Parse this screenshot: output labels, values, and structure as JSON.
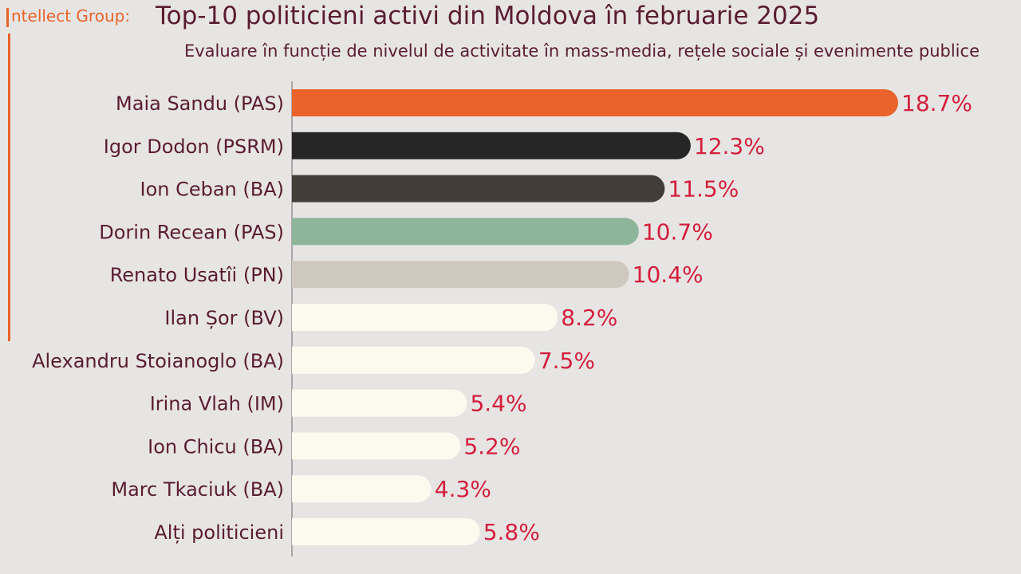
{
  "header": {
    "brand": "ntellect Group:",
    "title": "Top-10 politicieni activi din Moldova în februarie 2025",
    "subtitle": "Evaluare în funcție de nivelul de activitate în mass-media, rețele sociale și evenimente publice"
  },
  "colors": {
    "accent": "#e9632a",
    "label_text": "#5a1c30",
    "value_text": "#d41e3c",
    "axis": "#8a7a80"
  },
  "chart_data": {
    "type": "bar",
    "orientation": "horizontal",
    "title": "Top-10 politicieni activi din Moldova în februarie 2025",
    "subtitle": "Evaluare în funcție de nivelul de activitate în mass-media, rețele sociale și evenimente publice",
    "categories": [
      "Maia Sandu (PAS)",
      "Igor Dodon (PSRM)",
      "Ion Ceban (BA)",
      "Dorin Recean (PAS)",
      "Renato Usatîi (PN)",
      "Ilan Șor (BV)",
      "Alexandru Stoianoglo (BA)",
      "Irina Vlah (IM)",
      "Ion Chicu (BA)",
      "Marc Tkaciuk (BA)",
      "Alți politicieni"
    ],
    "values": [
      18.7,
      12.3,
      11.5,
      10.7,
      10.4,
      8.2,
      7.5,
      5.4,
      5.2,
      4.3,
      5.8
    ],
    "value_labels": [
      "18.7%",
      "12.3%",
      "11.5%",
      "10.7%",
      "10.4%",
      "8.2%",
      "7.5%",
      "5.4%",
      "5.2%",
      "4.3%",
      "5.8%"
    ],
    "bar_colors": [
      "#e9632a",
      "#262626",
      "#423d39",
      "#8db59a",
      "#cfc8bf",
      "#fcf9ee",
      "#fcf9ee",
      "#fcf9ee",
      "#fcf9ee",
      "#fcf9ee",
      "#fcf9ee"
    ],
    "xlim": [
      0,
      18.7
    ],
    "grid": false,
    "legend": "none"
  }
}
